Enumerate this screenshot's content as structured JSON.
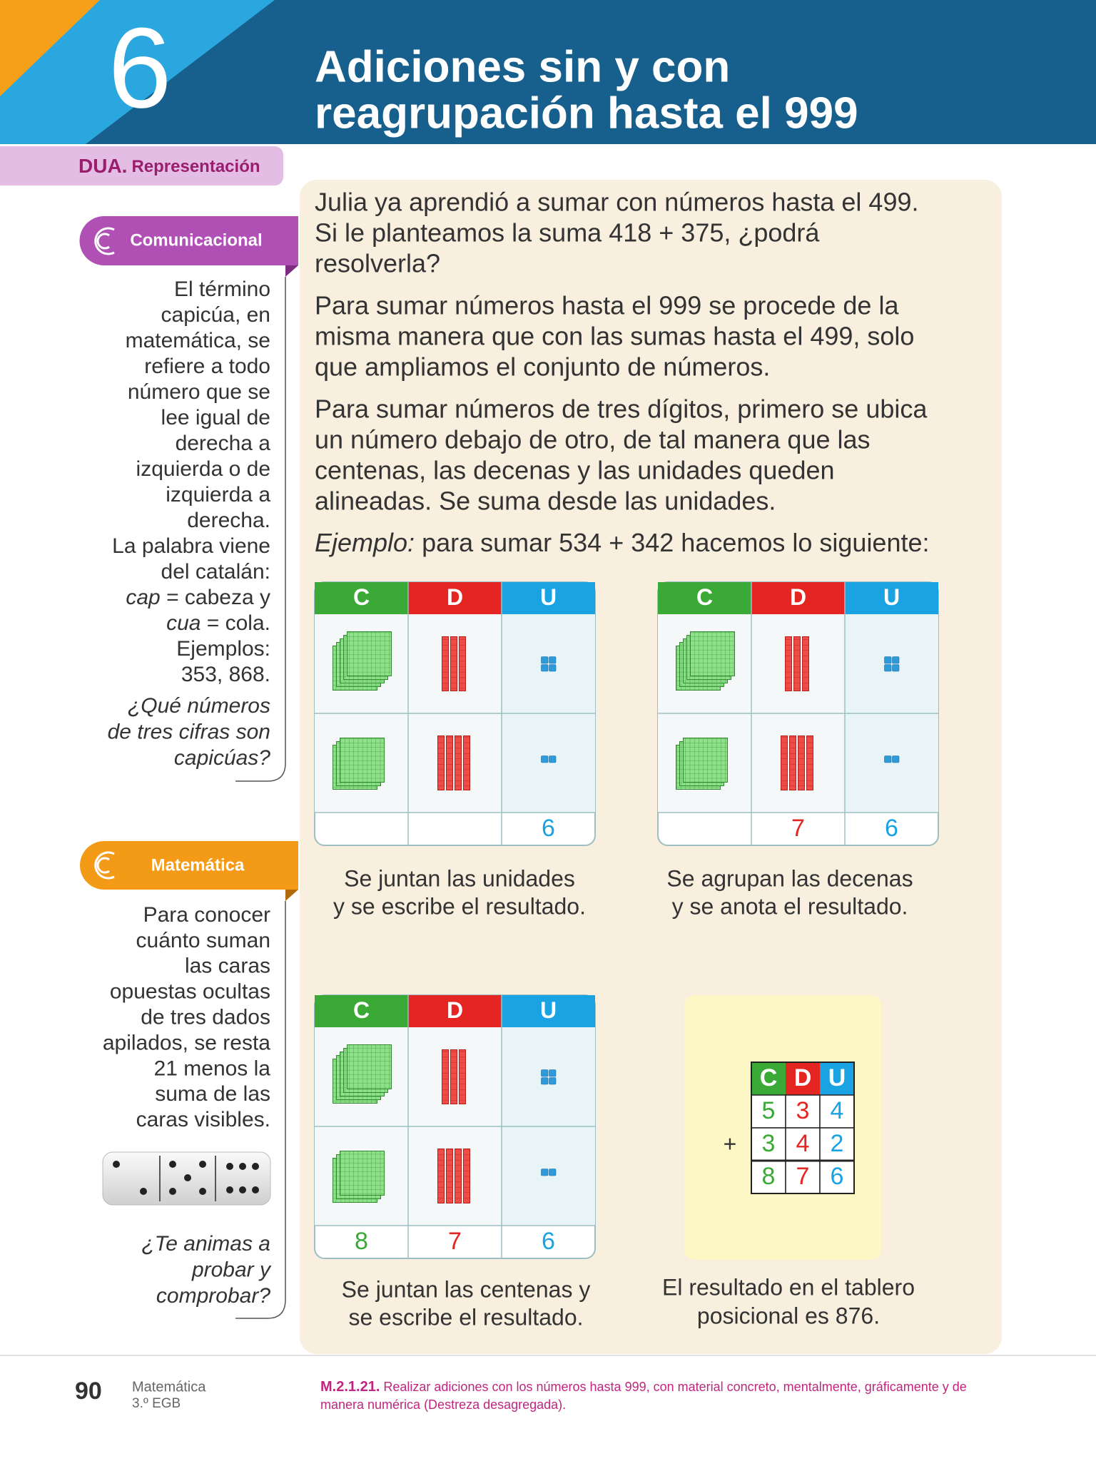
{
  "header": {
    "unit_number": "6",
    "title_lines": [
      "Adiciones sin y con",
      "reagrupación hasta el 999"
    ]
  },
  "dua": {
    "label": "DUA.",
    "value": "Representación"
  },
  "sidebar": {
    "comunicacional": {
      "tab": "Comunicacional",
      "lines": [
        "El término",
        "capicúa, en",
        "matemática, se",
        "refiere a todo",
        "número que se",
        "lee igual de",
        "derecha a",
        "izquierda o de",
        "izquierda a",
        "derecha.",
        "La palabra viene",
        "del catalán:",
        {
          "em": "cap",
          "rest": " = cabeza y"
        },
        {
          "em": "cua",
          "rest": " = cola."
        },
        "Ejemplos:",
        "353, 868."
      ],
      "question_lines": [
        "¿Qué números",
        "de tres cifras son",
        "capicúas?"
      ]
    },
    "matematica": {
      "tab": "Matemática",
      "lines": [
        "Para conocer",
        "cuánto suman",
        "las caras",
        "opuestas ocultas",
        "de tres dados",
        "apilados, se resta",
        "21 menos la",
        "suma de las",
        "caras visibles."
      ],
      "question_lines": [
        "¿Te animas a",
        "probar y",
        "comprobar?"
      ]
    }
  },
  "main": {
    "paragraphs": [
      [
        "Julia ya aprendió a sumar con números hasta el 499.",
        "Si le planteamos la suma 418 + 375, ¿podrá",
        "resolverla?"
      ],
      [
        "Para sumar números hasta el 999 se procede de la",
        "misma manera que con las sumas hasta el 499, solo",
        "que ampliamos el conjunto de números."
      ],
      [
        "Para sumar números de tres dígitos, primero se ubica",
        "un número debajo de otro, de tal manera que las",
        "centenas, las decenas y las unidades queden",
        "alineadas. Se suma desde las unidades."
      ]
    ],
    "example": {
      "em": "Ejemplo:",
      "rest": " para sumar 534 + 342 hacemos lo siguiente:"
    },
    "place_headers": [
      "C",
      "D",
      "U"
    ],
    "boards": [
      {
        "results": [
          null,
          null,
          "6"
        ],
        "caption": [
          "Se juntan las unidades",
          "y se escribe el resultado."
        ]
      },
      {
        "results": [
          null,
          "7",
          "6"
        ],
        "caption": [
          "Se agrupan las decenas",
          "y se anota el resultado."
        ]
      },
      {
        "results": [
          "8",
          "7",
          "6"
        ],
        "caption": [
          "Se juntan las centenas y",
          "se escribe el resultado."
        ]
      }
    ],
    "summary": {
      "operator": "+",
      "rows": [
        [
          "5",
          "3",
          "4"
        ],
        [
          "3",
          "4",
          "2"
        ],
        [
          "8",
          "7",
          "6"
        ]
      ],
      "caption": [
        "El resultado en el tablero",
        "posicional es 876."
      ]
    }
  },
  "footer": {
    "page": "90",
    "subject": "Matemática",
    "grade": "3.º EGB",
    "code": "M.2.1.21.",
    "description_lines": [
      "Realizar adiciones con los números hasta 999, con material concreto, mentalmente, gráficamente y de",
      "manera numérica (Destreza desagregada)."
    ]
  }
}
